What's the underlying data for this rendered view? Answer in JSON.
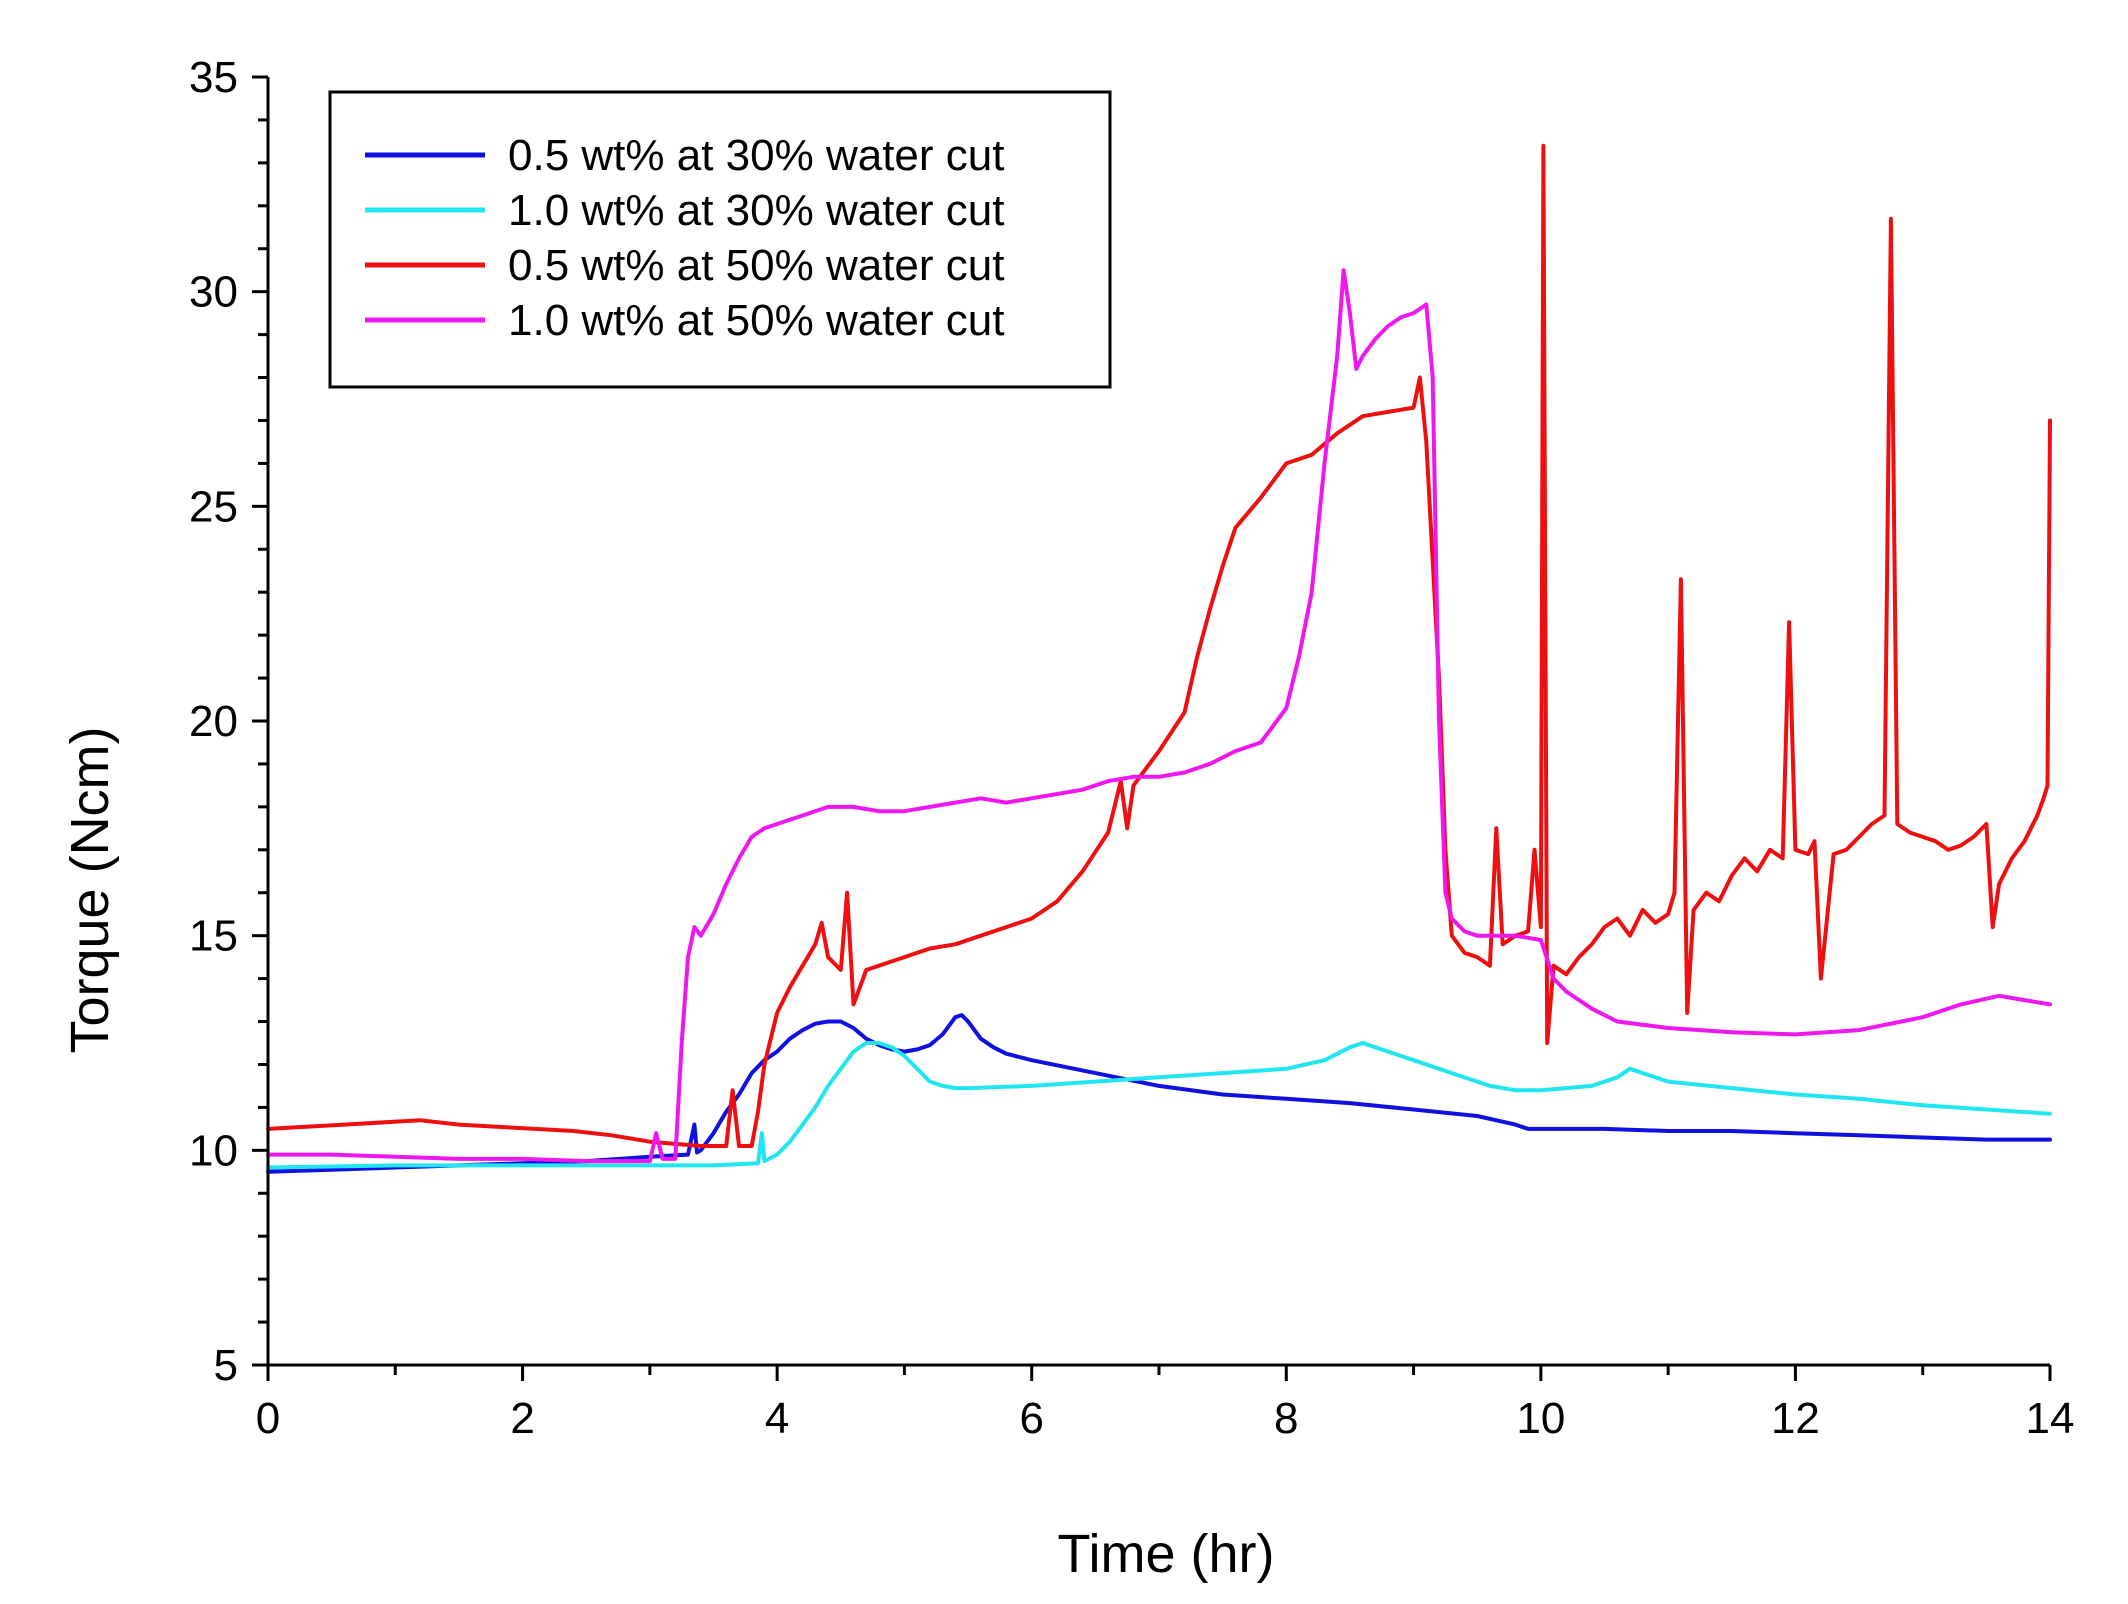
{
  "chart_data": {
    "type": "line",
    "title": "",
    "xlabel": "Time (hr)",
    "ylabel": "Torque (Ncm)",
    "xlim": [
      0,
      14
    ],
    "ylim": [
      5,
      35
    ],
    "x_major_ticks": [
      0,
      2,
      4,
      6,
      8,
      10,
      12,
      14
    ],
    "x_tick_labels": [
      "0",
      "2",
      "4",
      "6",
      "8",
      "10",
      "12",
      "14"
    ],
    "x_minor_step": 1,
    "y_major_ticks": [
      5,
      10,
      15,
      20,
      25,
      30,
      35
    ],
    "y_tick_labels": [
      "5",
      "10",
      "15",
      "20",
      "25",
      "30",
      "35"
    ],
    "y_minor_step": 1,
    "grid": false,
    "legend_position": "top-left",
    "series": [
      {
        "name": "0.5 wt% at 30% water cut",
        "color": "#1010e0",
        "x": [
          0,
          0.5,
          1,
          1.5,
          2,
          2.5,
          3,
          3.3,
          3.35,
          3.37,
          3.4,
          3.5,
          3.6,
          3.7,
          3.8,
          3.9,
          4.0,
          4.1,
          4.2,
          4.3,
          4.4,
          4.5,
          4.6,
          4.7,
          4.8,
          4.9,
          5.0,
          5.1,
          5.2,
          5.3,
          5.4,
          5.45,
          5.5,
          5.6,
          5.7,
          5.8,
          6.0,
          6.5,
          7.0,
          7.5,
          8.0,
          8.5,
          9.0,
          9.5,
          9.8,
          9.9,
          10.5,
          11,
          11.5,
          12,
          12.5,
          13,
          13.5,
          14
        ],
        "y": [
          9.5,
          9.55,
          9.6,
          9.65,
          9.7,
          9.75,
          9.85,
          9.9,
          10.6,
          9.95,
          10.0,
          10.4,
          10.9,
          11.3,
          11.8,
          12.1,
          12.3,
          12.6,
          12.8,
          12.95,
          13.0,
          13.0,
          12.85,
          12.6,
          12.45,
          12.35,
          12.3,
          12.35,
          12.45,
          12.7,
          13.1,
          13.15,
          13.0,
          12.6,
          12.4,
          12.25,
          12.1,
          11.8,
          11.5,
          11.3,
          11.2,
          11.1,
          10.95,
          10.8,
          10.6,
          10.5,
          10.5,
          10.45,
          10.45,
          10.4,
          10.35,
          10.3,
          10.25,
          10.25
        ]
      },
      {
        "name": "1.0 wt% at 30% water cut",
        "color": "#22e6ef",
        "x": [
          0,
          1,
          2,
          3,
          3.5,
          3.85,
          3.88,
          3.9,
          4.0,
          4.1,
          4.2,
          4.3,
          4.4,
          4.5,
          4.6,
          4.7,
          4.8,
          4.9,
          5.0,
          5.1,
          5.2,
          5.3,
          5.4,
          5.5,
          6.0,
          6.5,
          7.0,
          7.5,
          8.0,
          8.3,
          8.5,
          8.6,
          8.7,
          9.0,
          9.3,
          9.6,
          9.8,
          10.0,
          10.2,
          10.4,
          10.6,
          10.7,
          10.8,
          11.0,
          11.5,
          12,
          12.5,
          13,
          13.5,
          14
        ],
        "y": [
          9.6,
          9.65,
          9.65,
          9.65,
          9.65,
          9.7,
          10.4,
          9.75,
          9.9,
          10.2,
          10.6,
          11.0,
          11.5,
          11.9,
          12.3,
          12.5,
          12.5,
          12.4,
          12.2,
          11.9,
          11.6,
          11.5,
          11.45,
          11.45,
          11.5,
          11.6,
          11.7,
          11.8,
          11.9,
          12.1,
          12.4,
          12.5,
          12.4,
          12.1,
          11.8,
          11.5,
          11.4,
          11.4,
          11.45,
          11.5,
          11.7,
          11.9,
          11.8,
          11.6,
          11.45,
          11.3,
          11.2,
          11.05,
          10.95,
          10.85
        ]
      },
      {
        "name": "0.5 wt% at 50% water cut",
        "color": "#ee1010",
        "x": [
          0,
          0.3,
          0.6,
          0.9,
          1.2,
          1.5,
          1.8,
          2.1,
          2.4,
          2.7,
          3.0,
          3.2,
          3.4,
          3.6,
          3.65,
          3.7,
          3.75,
          3.8,
          3.85,
          3.9,
          4.0,
          4.1,
          4.2,
          4.3,
          4.35,
          4.4,
          4.5,
          4.55,
          4.6,
          4.65,
          4.7,
          4.8,
          5.0,
          5.2,
          5.4,
          5.6,
          5.8,
          6.0,
          6.2,
          6.4,
          6.6,
          6.7,
          6.75,
          6.8,
          7.0,
          7.2,
          7.3,
          7.4,
          7.5,
          7.6,
          7.8,
          8.0,
          8.2,
          8.4,
          8.5,
          8.6,
          8.8,
          9.0,
          9.05,
          9.1,
          9.2,
          9.25,
          9.3,
          9.4,
          9.5,
          9.6,
          9.65,
          9.7,
          9.8,
          9.9,
          9.95,
          10.0,
          10.02,
          10.05,
          10.1,
          10.2,
          10.3,
          10.4,
          10.5,
          10.6,
          10.7,
          10.8,
          10.9,
          11.0,
          11.05,
          11.1,
          11.15,
          11.2,
          11.3,
          11.4,
          11.5,
          11.6,
          11.7,
          11.8,
          11.9,
          11.95,
          12.0,
          12.1,
          12.15,
          12.2,
          12.3,
          12.4,
          12.5,
          12.6,
          12.7,
          12.75,
          12.8,
          12.9,
          13.0,
          13.1,
          13.2,
          13.3,
          13.4,
          13.5,
          13.55,
          13.6,
          13.7,
          13.8,
          13.9,
          13.95,
          13.98,
          14.0
        ],
        "y": [
          10.5,
          10.55,
          10.6,
          10.65,
          10.7,
          10.6,
          10.55,
          10.5,
          10.45,
          10.35,
          10.2,
          10.15,
          10.1,
          10.1,
          11.4,
          10.1,
          10.1,
          10.1,
          10.9,
          12.0,
          13.2,
          13.8,
          14.3,
          14.8,
          15.3,
          14.5,
          14.2,
          16.0,
          13.4,
          13.8,
          14.2,
          14.3,
          14.5,
          14.7,
          14.8,
          15.0,
          15.2,
          15.4,
          15.8,
          16.5,
          17.4,
          18.6,
          17.5,
          18.5,
          19.3,
          20.2,
          21.5,
          22.6,
          23.6,
          24.5,
          25.2,
          26.0,
          26.2,
          26.7,
          26.9,
          27.1,
          27.2,
          27.3,
          28.0,
          26.5,
          21.0,
          17.0,
          15.0,
          14.6,
          14.5,
          14.3,
          17.5,
          14.8,
          15.0,
          15.1,
          17.0,
          15.2,
          33.4,
          12.5,
          14.3,
          14.1,
          14.5,
          14.8,
          15.2,
          15.4,
          15.0,
          15.6,
          15.3,
          15.5,
          16.0,
          23.3,
          13.2,
          15.6,
          16.0,
          15.8,
          16.4,
          16.8,
          16.5,
          17.0,
          16.8,
          22.3,
          17.0,
          16.9,
          17.2,
          14.0,
          16.9,
          17.0,
          17.3,
          17.6,
          17.8,
          31.7,
          17.6,
          17.4,
          17.3,
          17.2,
          17.0,
          17.1,
          17.3,
          17.6,
          15.2,
          16.2,
          16.8,
          17.2,
          17.8,
          18.2,
          18.5,
          27.0
        ]
      },
      {
        "name": "1.0 wt% at 50% water cut",
        "color": "#ee18ee",
        "x": [
          0,
          0.5,
          1,
          1.5,
          2,
          2.5,
          3.0,
          3.05,
          3.1,
          3.2,
          3.25,
          3.3,
          3.35,
          3.4,
          3.5,
          3.6,
          3.7,
          3.8,
          3.9,
          4.0,
          4.2,
          4.4,
          4.6,
          4.8,
          5.0,
          5.2,
          5.4,
          5.6,
          5.8,
          6.0,
          6.2,
          6.4,
          6.6,
          6.8,
          7.0,
          7.2,
          7.4,
          7.6,
          7.8,
          8.0,
          8.1,
          8.2,
          8.3,
          8.4,
          8.45,
          8.5,
          8.55,
          8.6,
          8.7,
          8.8,
          8.9,
          9.0,
          9.1,
          9.15,
          9.2,
          9.25,
          9.3,
          9.4,
          9.5,
          9.6,
          9.8,
          10.0,
          10.1,
          10.2,
          10.4,
          10.6,
          11.0,
          11.5,
          12.0,
          12.5,
          13.0,
          13.3,
          13.6,
          13.8,
          14.0
        ],
        "y": [
          9.9,
          9.9,
          9.85,
          9.8,
          9.8,
          9.75,
          9.75,
          10.4,
          9.8,
          9.8,
          12.5,
          14.5,
          15.2,
          15.0,
          15.5,
          16.2,
          16.8,
          17.3,
          17.5,
          17.6,
          17.8,
          18.0,
          18.0,
          17.9,
          17.9,
          18.0,
          18.1,
          18.2,
          18.1,
          18.2,
          18.3,
          18.4,
          18.6,
          18.7,
          18.7,
          18.8,
          19.0,
          19.3,
          19.5,
          20.3,
          21.5,
          23.0,
          26.0,
          28.5,
          30.5,
          29.5,
          28.2,
          28.5,
          28.9,
          29.2,
          29.4,
          29.5,
          29.7,
          28.0,
          20.0,
          16.0,
          15.4,
          15.1,
          15.0,
          15.0,
          15.0,
          14.9,
          14.0,
          13.7,
          13.3,
          13.0,
          12.85,
          12.75,
          12.7,
          12.8,
          13.1,
          13.4,
          13.6,
          13.5,
          13.4
        ]
      }
    ]
  }
}
